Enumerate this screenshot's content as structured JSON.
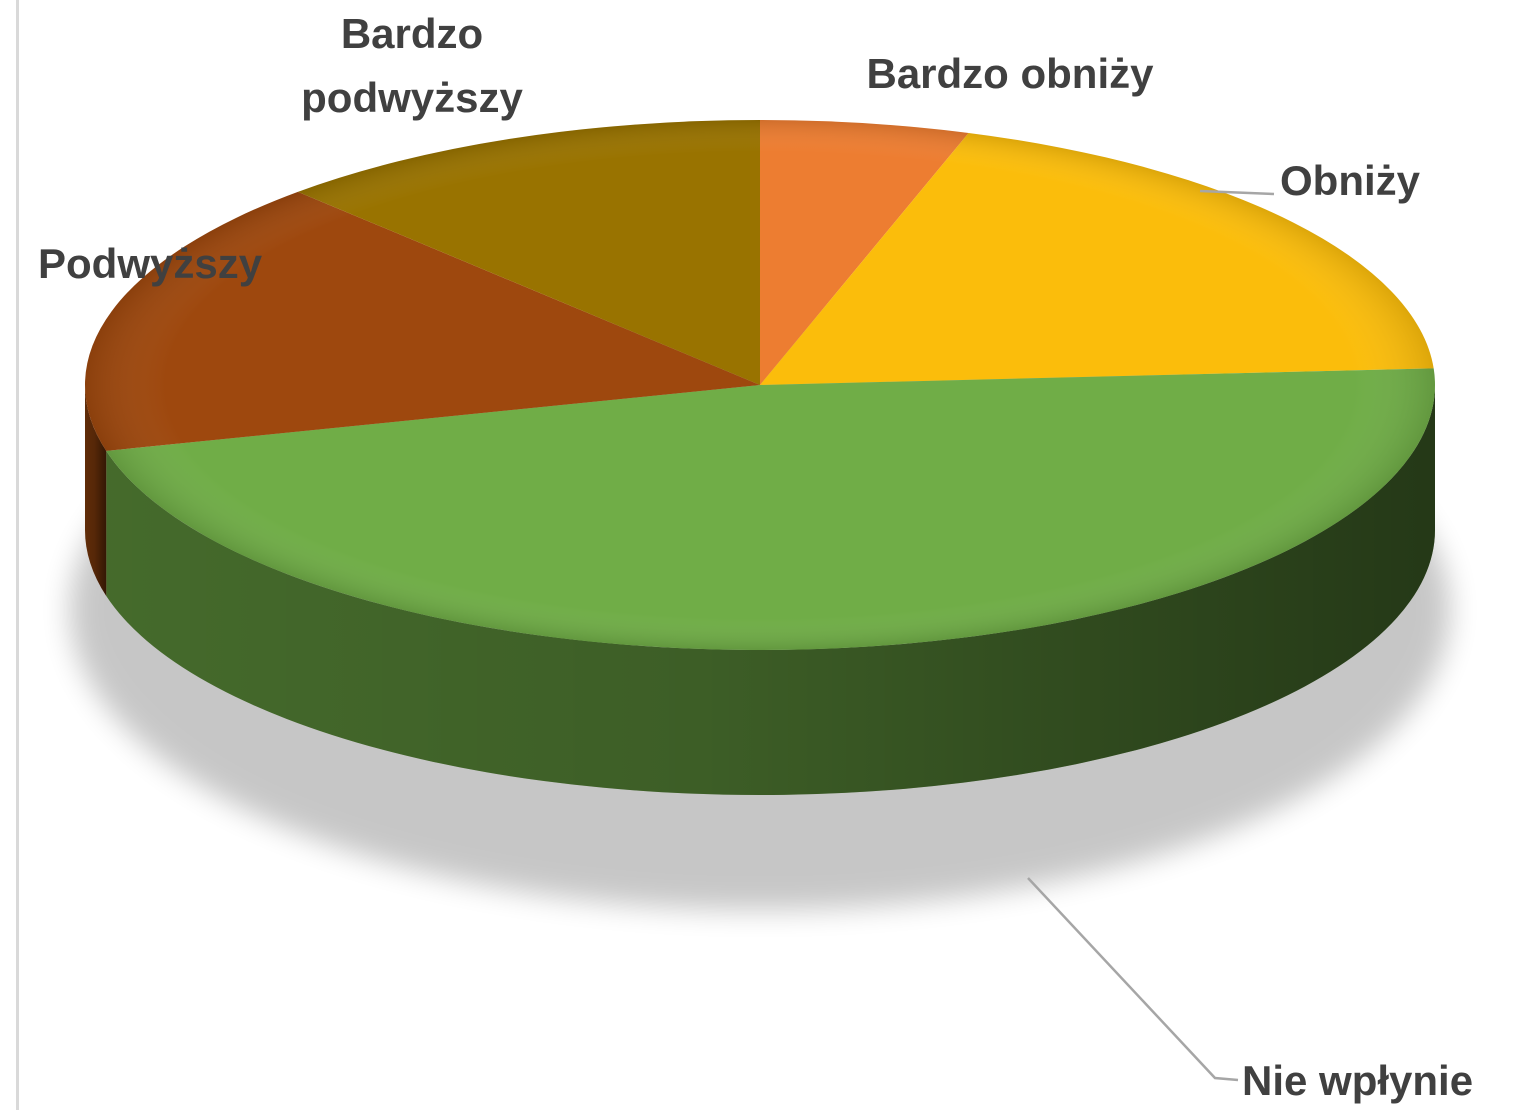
{
  "chart_data": {
    "type": "pie",
    "style": "3d-tilted",
    "title": "",
    "categories": [
      "Bardzo obniży",
      "Obniży",
      "Nie wpłynie",
      "Podwyższy",
      "Bardzo podwyższy"
    ],
    "values": [
      5,
      19,
      47,
      17,
      12
    ],
    "colors": [
      "#ED7D31",
      "#FBBD0B",
      "#70AD47",
      "#9E480E",
      "#997300"
    ],
    "labels": [
      {
        "lines": [
          "Bardzo obniży"
        ]
      },
      {
        "lines": [
          "Obniży"
        ]
      },
      {
        "lines": [
          "Nie wpłynie"
        ]
      },
      {
        "lines": [
          "Podwyższy"
        ]
      },
      {
        "lines": [
          "Bardzo",
          "podwyższy"
        ]
      }
    ],
    "legend": "none",
    "start": "top, clockwise"
  }
}
